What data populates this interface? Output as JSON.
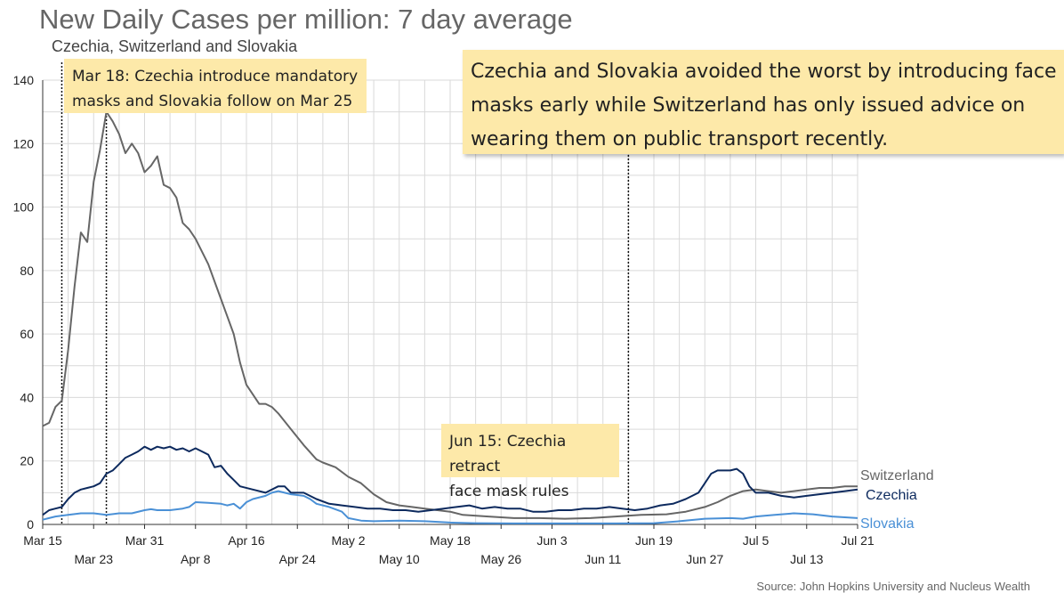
{
  "chart_data": {
    "type": "line",
    "title": "New Daily Cases per million: 7 day average",
    "subtitle": "Czechia, Switzerland and Slovakia",
    "source": "Source: John Hopkins University and Nucleus Wealth",
    "ylim": [
      0,
      140
    ],
    "yticks": [
      0,
      20,
      40,
      60,
      80,
      100,
      120,
      140
    ],
    "xlim": [
      "2020-03-15",
      "2020-07-21"
    ],
    "x_ticks_upper": [
      "Mar 15",
      "Mar 31",
      "Apr 16",
      "May 2",
      "May 18",
      "Jun 3",
      "Jun 19",
      "Jul 5",
      "Jul 21"
    ],
    "x_ticks_lower": [
      "Mar 23",
      "Apr 8",
      "Apr 24",
      "May 10",
      "May 26",
      "Jun 11",
      "Jun 27",
      "Jul 13"
    ],
    "grid": true,
    "colors": {
      "Switzerland": "#666666",
      "Czechia": "#0d2a5e",
      "Slovakia": "#4a90d6",
      "note_bg": "#fde9a9"
    },
    "vlines": [
      "2020-03-18",
      "2020-03-25",
      "2020-06-15"
    ],
    "annotations": {
      "mar18": "Mar 18: Czechia introduce mandatory\nmasks and Slovakia follow on Mar 25",
      "jun15": "Jun 15: Czechia retract\nface mask rules",
      "main": "Czechia and Slovakia avoided the worst by introducing face\nmasks early while Switzerland has only issued advice on\nwearing them on public transport recently."
    },
    "series": [
      {
        "name": "Switzerland",
        "points": [
          [
            "2020-03-15",
            31
          ],
          [
            "2020-03-16",
            32
          ],
          [
            "2020-03-17",
            37
          ],
          [
            "2020-03-18",
            39
          ],
          [
            "2020-03-19",
            55
          ],
          [
            "2020-03-20",
            75
          ],
          [
            "2020-03-21",
            92
          ],
          [
            "2020-03-22",
            89
          ],
          [
            "2020-03-23",
            108
          ],
          [
            "2020-03-24",
            118
          ],
          [
            "2020-03-25",
            130
          ],
          [
            "2020-03-26",
            127
          ],
          [
            "2020-03-27",
            123
          ],
          [
            "2020-03-28",
            117
          ],
          [
            "2020-03-29",
            120
          ],
          [
            "2020-03-30",
            117
          ],
          [
            "2020-03-31",
            111
          ],
          [
            "2020-04-01",
            113
          ],
          [
            "2020-04-02",
            116
          ],
          [
            "2020-04-03",
            107
          ],
          [
            "2020-04-04",
            106
          ],
          [
            "2020-04-05",
            103
          ],
          [
            "2020-04-06",
            95
          ],
          [
            "2020-04-07",
            93
          ],
          [
            "2020-04-08",
            90
          ],
          [
            "2020-04-10",
            82
          ],
          [
            "2020-04-12",
            71
          ],
          [
            "2020-04-14",
            60
          ],
          [
            "2020-04-15",
            51
          ],
          [
            "2020-04-16",
            44
          ],
          [
            "2020-04-17",
            41
          ],
          [
            "2020-04-18",
            38
          ],
          [
            "2020-04-19",
            38
          ],
          [
            "2020-04-20",
            37
          ],
          [
            "2020-04-21",
            35
          ],
          [
            "2020-04-23",
            30
          ],
          [
            "2020-04-25",
            25
          ],
          [
            "2020-04-27",
            20.5
          ],
          [
            "2020-04-28",
            19.5
          ],
          [
            "2020-04-30",
            18
          ],
          [
            "2020-05-02",
            15
          ],
          [
            "2020-05-04",
            13
          ],
          [
            "2020-05-06",
            9.5
          ],
          [
            "2020-05-08",
            7
          ],
          [
            "2020-05-10",
            6
          ],
          [
            "2020-05-12",
            5.5
          ],
          [
            "2020-05-14",
            5
          ],
          [
            "2020-05-16",
            4.5
          ],
          [
            "2020-05-18",
            4
          ],
          [
            "2020-05-20",
            3
          ],
          [
            "2020-05-24",
            2.5
          ],
          [
            "2020-05-28",
            2
          ],
          [
            "2020-06-01",
            2
          ],
          [
            "2020-06-05",
            1.8
          ],
          [
            "2020-06-09",
            2
          ],
          [
            "2020-06-13",
            2.5
          ],
          [
            "2020-06-17",
            3
          ],
          [
            "2020-06-21",
            3.2
          ],
          [
            "2020-06-24",
            4
          ],
          [
            "2020-06-27",
            5.5
          ],
          [
            "2020-06-29",
            7
          ],
          [
            "2020-07-01",
            9
          ],
          [
            "2020-07-03",
            10.5
          ],
          [
            "2020-07-05",
            11
          ],
          [
            "2020-07-07",
            10.5
          ],
          [
            "2020-07-09",
            10
          ],
          [
            "2020-07-11",
            10.5
          ],
          [
            "2020-07-13",
            11
          ],
          [
            "2020-07-15",
            11.5
          ],
          [
            "2020-07-17",
            11.5
          ],
          [
            "2020-07-19",
            12
          ],
          [
            "2020-07-21",
            12
          ]
        ]
      },
      {
        "name": "Czechia",
        "points": [
          [
            "2020-03-15",
            3
          ],
          [
            "2020-03-16",
            4.5
          ],
          [
            "2020-03-17",
            5
          ],
          [
            "2020-03-18",
            5.5
          ],
          [
            "2020-03-19",
            8
          ],
          [
            "2020-03-20",
            10
          ],
          [
            "2020-03-21",
            11
          ],
          [
            "2020-03-22",
            11.5
          ],
          [
            "2020-03-23",
            12
          ],
          [
            "2020-03-24",
            13
          ],
          [
            "2020-03-25",
            16
          ],
          [
            "2020-03-26",
            17
          ],
          [
            "2020-03-27",
            19
          ],
          [
            "2020-03-28",
            21
          ],
          [
            "2020-03-29",
            22
          ],
          [
            "2020-03-30",
            23
          ],
          [
            "2020-03-31",
            24.5
          ],
          [
            "2020-04-01",
            23.5
          ],
          [
            "2020-04-02",
            24.5
          ],
          [
            "2020-04-03",
            24
          ],
          [
            "2020-04-04",
            24.5
          ],
          [
            "2020-04-05",
            23.5
          ],
          [
            "2020-04-06",
            24
          ],
          [
            "2020-04-07",
            23
          ],
          [
            "2020-04-08",
            24
          ],
          [
            "2020-04-09",
            23
          ],
          [
            "2020-04-10",
            22
          ],
          [
            "2020-04-11",
            18
          ],
          [
            "2020-04-12",
            18.5
          ],
          [
            "2020-04-13",
            16
          ],
          [
            "2020-04-14",
            14
          ],
          [
            "2020-04-15",
            12
          ],
          [
            "2020-04-17",
            11
          ],
          [
            "2020-04-19",
            10
          ],
          [
            "2020-04-21",
            12
          ],
          [
            "2020-04-22",
            12
          ],
          [
            "2020-04-23",
            10
          ],
          [
            "2020-04-25",
            10
          ],
          [
            "2020-04-27",
            8
          ],
          [
            "2020-04-29",
            6.5
          ],
          [
            "2020-05-01",
            6
          ],
          [
            "2020-05-03",
            5.5
          ],
          [
            "2020-05-05",
            5
          ],
          [
            "2020-05-07",
            5
          ],
          [
            "2020-05-09",
            4.5
          ],
          [
            "2020-05-11",
            4.5
          ],
          [
            "2020-05-13",
            4
          ],
          [
            "2020-05-15",
            4.5
          ],
          [
            "2020-05-17",
            5
          ],
          [
            "2020-05-19",
            5.5
          ],
          [
            "2020-05-21",
            6
          ],
          [
            "2020-05-23",
            5
          ],
          [
            "2020-05-25",
            5.5
          ],
          [
            "2020-05-27",
            5
          ],
          [
            "2020-05-29",
            5
          ],
          [
            "2020-05-31",
            4
          ],
          [
            "2020-06-02",
            4
          ],
          [
            "2020-06-04",
            4.5
          ],
          [
            "2020-06-06",
            4.5
          ],
          [
            "2020-06-08",
            5
          ],
          [
            "2020-06-10",
            5
          ],
          [
            "2020-06-12",
            5.5
          ],
          [
            "2020-06-14",
            5
          ],
          [
            "2020-06-16",
            4.5
          ],
          [
            "2020-06-18",
            5
          ],
          [
            "2020-06-20",
            6
          ],
          [
            "2020-06-22",
            6.5
          ],
          [
            "2020-06-24",
            8
          ],
          [
            "2020-06-26",
            10
          ],
          [
            "2020-06-27",
            13
          ],
          [
            "2020-06-28",
            16
          ],
          [
            "2020-06-29",
            17
          ],
          [
            "2020-07-01",
            17
          ],
          [
            "2020-07-02",
            17.5
          ],
          [
            "2020-07-03",
            16
          ],
          [
            "2020-07-04",
            12
          ],
          [
            "2020-07-05",
            10
          ],
          [
            "2020-07-07",
            10
          ],
          [
            "2020-07-09",
            9
          ],
          [
            "2020-07-11",
            8.5
          ],
          [
            "2020-07-13",
            9
          ],
          [
            "2020-07-15",
            9.5
          ],
          [
            "2020-07-17",
            10
          ],
          [
            "2020-07-19",
            10.5
          ],
          [
            "2020-07-21",
            11
          ]
        ]
      },
      {
        "name": "Slovakia",
        "points": [
          [
            "2020-03-15",
            1.5
          ],
          [
            "2020-03-16",
            2
          ],
          [
            "2020-03-17",
            2.5
          ],
          [
            "2020-03-19",
            3
          ],
          [
            "2020-03-21",
            3.5
          ],
          [
            "2020-03-23",
            3.5
          ],
          [
            "2020-03-25",
            3
          ],
          [
            "2020-03-27",
            3.5
          ],
          [
            "2020-03-29",
            3.5
          ],
          [
            "2020-03-31",
            4.5
          ],
          [
            "2020-04-01",
            4.8
          ],
          [
            "2020-04-02",
            4.5
          ],
          [
            "2020-04-04",
            4.5
          ],
          [
            "2020-04-06",
            5
          ],
          [
            "2020-04-07",
            5.5
          ],
          [
            "2020-04-08",
            7
          ],
          [
            "2020-04-10",
            6.8
          ],
          [
            "2020-04-12",
            6.5
          ],
          [
            "2020-04-13",
            6
          ],
          [
            "2020-04-14",
            6.5
          ],
          [
            "2020-04-15",
            5
          ],
          [
            "2020-04-16",
            7
          ],
          [
            "2020-04-17",
            8
          ],
          [
            "2020-04-19",
            9
          ],
          [
            "2020-04-20",
            10
          ],
          [
            "2020-04-21",
            10.5
          ],
          [
            "2020-04-22",
            10
          ],
          [
            "2020-04-23",
            9.5
          ],
          [
            "2020-04-25",
            9
          ],
          [
            "2020-04-26",
            8
          ],
          [
            "2020-04-27",
            6.5
          ],
          [
            "2020-04-29",
            5.5
          ],
          [
            "2020-05-01",
            4
          ],
          [
            "2020-05-02",
            2
          ],
          [
            "2020-05-04",
            1.2
          ],
          [
            "2020-05-06",
            1
          ],
          [
            "2020-05-10",
            1.2
          ],
          [
            "2020-05-14",
            1
          ],
          [
            "2020-05-18",
            0.6
          ],
          [
            "2020-05-22",
            0.4
          ],
          [
            "2020-05-28",
            0.3
          ],
          [
            "2020-06-05",
            0.3
          ],
          [
            "2020-06-13",
            0.3
          ],
          [
            "2020-06-19",
            0.4
          ],
          [
            "2020-06-23",
            1
          ],
          [
            "2020-06-27",
            1.8
          ],
          [
            "2020-07-01",
            2
          ],
          [
            "2020-07-03",
            1.8
          ],
          [
            "2020-07-05",
            2.5
          ],
          [
            "2020-07-08",
            3
          ],
          [
            "2020-07-11",
            3.5
          ],
          [
            "2020-07-14",
            3.2
          ],
          [
            "2020-07-17",
            2.5
          ],
          [
            "2020-07-21",
            2
          ]
        ]
      }
    ]
  }
}
